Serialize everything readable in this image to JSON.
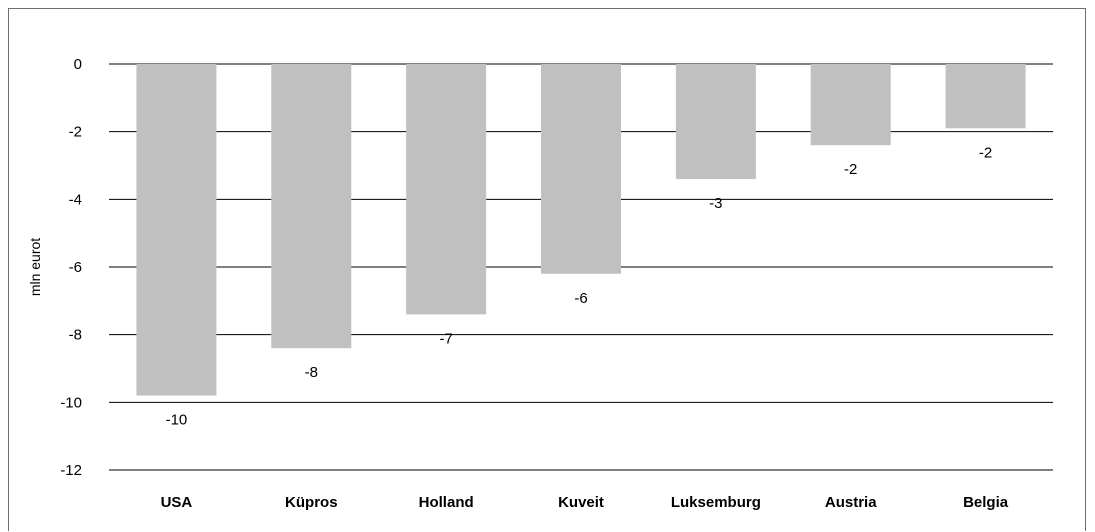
{
  "chart_data": {
    "type": "bar",
    "title": "",
    "xlabel": "",
    "ylabel": "mln eurot",
    "categories": [
      "USA",
      "Küpros",
      "Holland",
      "Kuveit",
      "Luksemburg",
      "Austria",
      "Belgia"
    ],
    "values": [
      -9.8,
      -8.4,
      -7.4,
      -6.2,
      -3.4,
      -2.4,
      -1.9
    ],
    "data_labels": [
      "-10",
      "-8",
      "-7",
      "-6",
      "-3",
      "-2",
      "-2"
    ],
    "ylim": [
      -12,
      0
    ],
    "yticks": [
      "0",
      "-2",
      "-4",
      "-6",
      "-8",
      "-10",
      "-12"
    ],
    "grid": true,
    "colors": {
      "bar": "#c0c0c0",
      "grid": "#000000"
    }
  }
}
